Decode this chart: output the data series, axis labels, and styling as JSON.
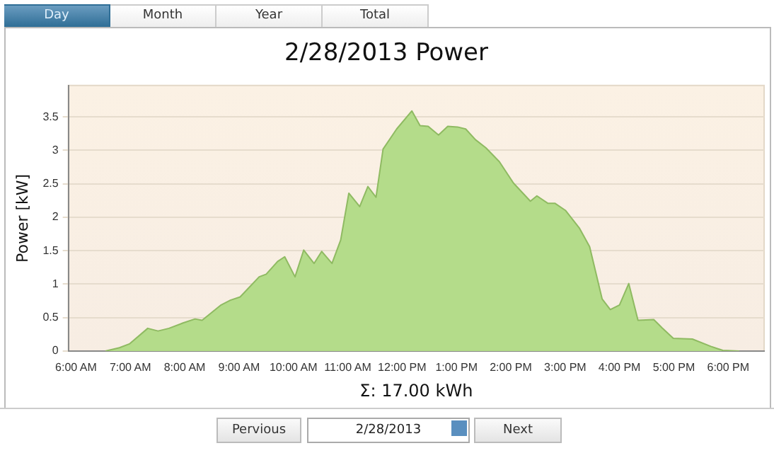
{
  "chart_data": {
    "type": "area",
    "title": "2/28/2013 Power",
    "xlabel": "Σ: 17.00 kWh",
    "ylabel": "Power [kW]",
    "annotations": [
      "Day",
      "Month",
      "Year",
      "Total",
      "Pervious",
      "2/28/2013",
      "Next"
    ],
    "series": [
      {
        "color": "#b4dc8a",
        "x": [
          6.54,
          6.8,
          6.99,
          7.32,
          7.51,
          7.71,
          7.97,
          8.19,
          8.32,
          8.67,
          8.84,
          9.02,
          9.15,
          9.37,
          9.5,
          9.71,
          9.84,
          10.03,
          10.19,
          10.38,
          10.52,
          10.71,
          10.87,
          11.02,
          11.22,
          11.37,
          11.52,
          11.65,
          11.9,
          12.18,
          12.33,
          12.48,
          12.67,
          12.84,
          13.02,
          13.17,
          13.35,
          13.54,
          13.79,
          14.05,
          14.36,
          14.48,
          14.68,
          14.81,
          15.01,
          15.26,
          15.45,
          15.68,
          15.83,
          16.0,
          16.17,
          16.34,
          16.63,
          16.78,
          16.99,
          17.34,
          17.68,
          17.9,
          18.2
        ],
        "values": [
          0,
          0.05,
          0.11,
          0.34,
          0.3,
          0.34,
          0.42,
          0.48,
          0.46,
          0.69,
          0.76,
          0.81,
          0.92,
          1.11,
          1.15,
          1.34,
          1.41,
          1.11,
          1.51,
          1.31,
          1.49,
          1.31,
          1.66,
          2.36,
          2.16,
          2.46,
          2.3,
          3.02,
          3.32,
          3.59,
          3.37,
          3.36,
          3.23,
          3.36,
          3.35,
          3.32,
          3.16,
          3.04,
          2.83,
          2.51,
          2.24,
          2.32,
          2.21,
          2.21,
          2.1,
          1.84,
          1.56,
          0.78,
          0.62,
          0.69,
          1.01,
          0.46,
          0.47,
          0.35,
          0.19,
          0.18,
          0.07,
          0.01,
          0
        ]
      }
    ],
    "xlim": [
      5.86,
      18.66
    ],
    "xticks": [
      {
        "value": 6,
        "label": "6:00 AM"
      },
      {
        "value": 7,
        "label": "7:00 AM"
      },
      {
        "value": 8,
        "label": "8:00 AM"
      },
      {
        "value": 9,
        "label": "9:00 AM"
      },
      {
        "value": 10,
        "label": "10:00 AM"
      },
      {
        "value": 11,
        "label": "11:00 AM"
      },
      {
        "value": 12,
        "label": "12:00 PM"
      },
      {
        "value": 13,
        "label": "1:00 PM"
      },
      {
        "value": 14,
        "label": "2:00 PM"
      },
      {
        "value": 15,
        "label": "3:00 PM"
      },
      {
        "value": 16,
        "label": "4:00 PM"
      },
      {
        "value": 17,
        "label": "5:00 PM"
      },
      {
        "value": 18,
        "label": "6:00 PM"
      }
    ],
    "ylim": [
      0,
      3.97
    ],
    "yticks": [
      0,
      0.5,
      1,
      1.5,
      2,
      2.5,
      3,
      3.5
    ],
    "grid": "y",
    "marker": "none"
  }
}
